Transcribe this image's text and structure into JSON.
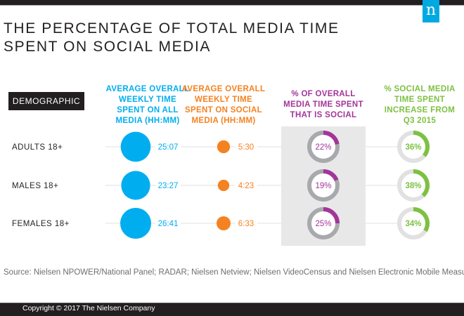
{
  "header": {
    "logo_letter": "n",
    "title_line1": "THE PERCENTAGE OF TOTAL MEDIA TIME",
    "title_line2": "SPENT ON SOCIAL MEDIA"
  },
  "colors": {
    "blue": "#00aeef",
    "orange": "#f58220",
    "purple": "#a3359a",
    "green": "#7dc142",
    "ring_gray_dark": "#a7a9ac",
    "ring_gray_light": "#e1e1e1",
    "dark": "#231f20"
  },
  "chart_data": {
    "type": "table",
    "title": "THE PERCENTAGE OF TOTAL MEDIA TIME SPENT ON SOCIAL MEDIA",
    "columns": [
      "DEMOGRAPHIC",
      "AVERAGE OVERALL WEEKLY TIME SPENT ON ALL MEDIA (HH:MM)",
      "AVERAGE OVERALL WEEKLY TIME SPENT ON SOCIAL MEDIA (HH:MM)",
      "% OF OVERALL MEDIA TIME SPENT THAT IS SOCIAL",
      "% SOCIAL MEDIA TIME SPENT INCREASE FROM Q3 2015"
    ],
    "column_headers": {
      "demographic": "DEMOGRAPHIC",
      "all_media": [
        "AVERAGE OVERALL",
        "WEEKLY TIME",
        "SPENT ON ALL",
        "MEDIA (HH:MM)"
      ],
      "social_media": [
        "AVERAGE OVERALL",
        "WEEKLY TIME",
        "SPENT ON SOCIAL",
        "MEDIA (HH:MM)"
      ],
      "pct_social": [
        "% OF OVERALL",
        "MEDIA TIME SPENT",
        "THAT IS SOCIAL"
      ],
      "pct_increase": [
        "% SOCIAL MEDIA",
        "TIME SPENT",
        "INCREASE FROM",
        "Q3 2015"
      ]
    },
    "rows": [
      {
        "demographic": "ADULTS 18+",
        "all_media": "25:07",
        "all_media_minutes": 1507,
        "social_media": "5:30",
        "social_media_minutes": 330,
        "pct_social": 22,
        "pct_social_label": "22%",
        "pct_increase": 36,
        "pct_increase_label": "36%"
      },
      {
        "demographic": "MALES 18+",
        "all_media": "23:27",
        "all_media_minutes": 1407,
        "social_media": "4:23",
        "social_media_minutes": 263,
        "pct_social": 19,
        "pct_social_label": "19%",
        "pct_increase": 38,
        "pct_increase_label": "38%"
      },
      {
        "demographic": "FEMALES 18+",
        "all_media": "26:41",
        "all_media_minutes": 1601,
        "social_media": "6:33",
        "social_media_minutes": 393,
        "pct_social": 25,
        "pct_social_label": "25%",
        "pct_increase": 34,
        "pct_increase_label": "34%"
      }
    ]
  },
  "source": "Source: Nielsen NPOWER/National Panel; RADAR; Nielsen Netview; Nielsen VideoCensus and Nielsen Electronic Mobile Measurement",
  "footer": {
    "copyright": "Copyright © 2017 The Nielsen Company"
  }
}
